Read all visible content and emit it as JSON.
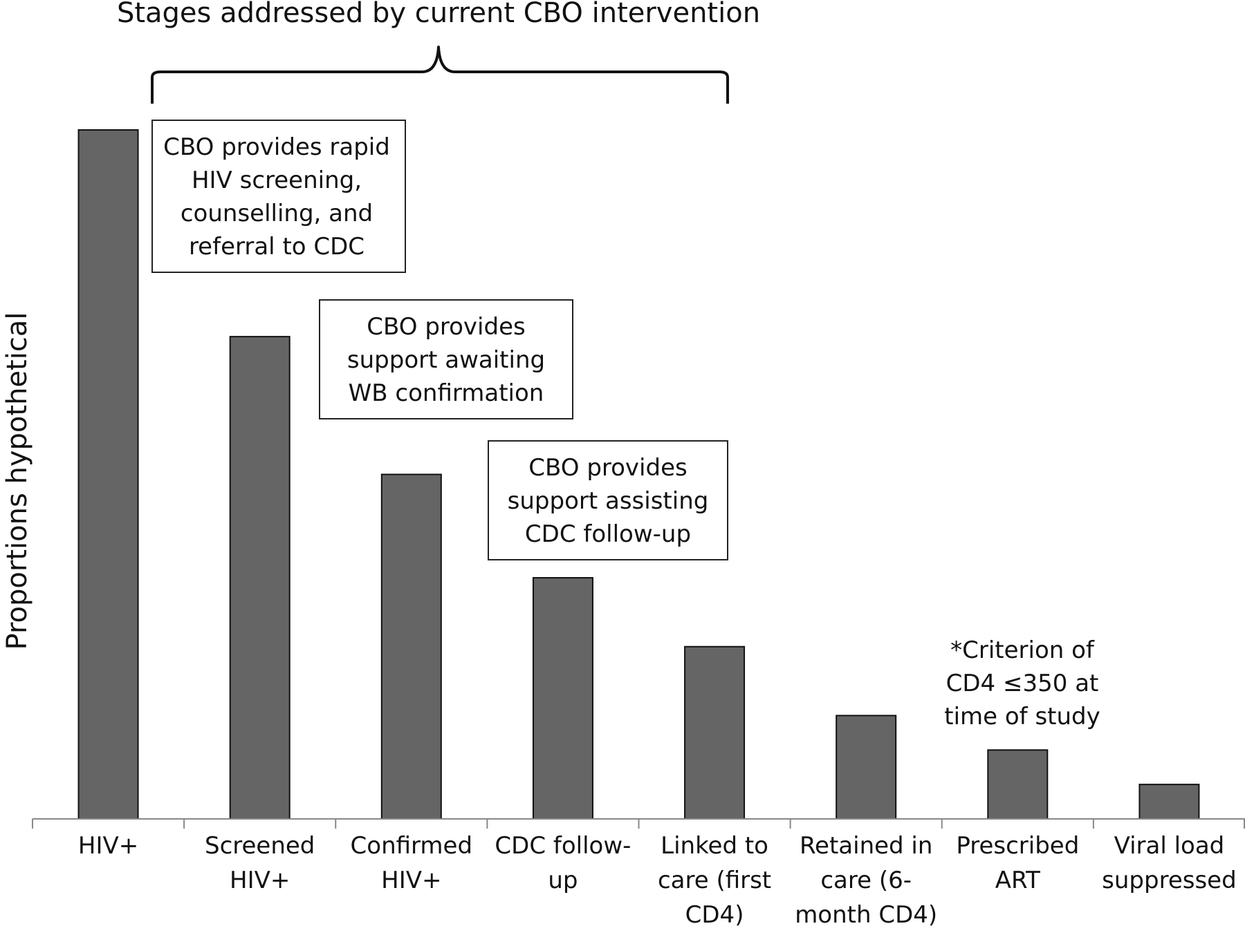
{
  "chart_data": {
    "type": "bar",
    "title": "Stages addressed by current CBO intervention",
    "ylabel": "Proportions hypothetical",
    "xlabel": "",
    "grid": false,
    "ylim": [
      0,
      100
    ],
    "categories": [
      [
        "HIV+"
      ],
      [
        "Screened",
        "HIV+"
      ],
      [
        "Confirmed",
        "HIV+"
      ],
      [
        "CDC follow-",
        "up"
      ],
      [
        "Linked to",
        "care (first",
        "CD4)"
      ],
      [
        "Retained in",
        "care (6-",
        "month CD4)"
      ],
      [
        "Prescribed",
        "ART"
      ],
      [
        "Viral load",
        "suppressed"
      ]
    ],
    "values": [
      100,
      70,
      50,
      35,
      25,
      15,
      10,
      5
    ],
    "colors": {
      "bar": "#656565",
      "edge": "#111111"
    },
    "annotations": [
      {
        "lines": [
          "CBO provides rapid",
          "HIV screening,",
          "counselling, and",
          "referral to CDC"
        ]
      },
      {
        "lines": [
          "CBO provides",
          "support  awaiting",
          "WB confirmation"
        ]
      },
      {
        "lines": [
          "CBO provides",
          "support   assisting",
          "CDC follow-up"
        ]
      },
      {
        "lines": [
          "*Criterion of",
          "CD4 ≤350 at",
          "time of study"
        ]
      }
    ]
  }
}
